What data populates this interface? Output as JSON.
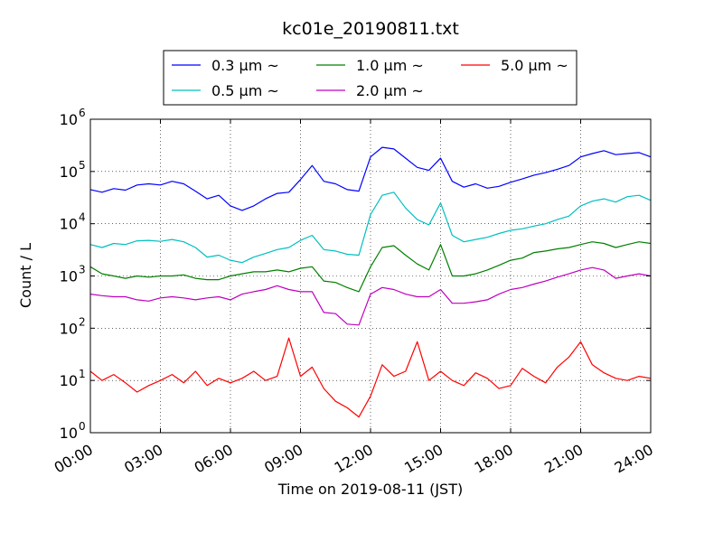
{
  "chart_data": {
    "type": "line",
    "title": "kc01e_20190811.txt",
    "xlabel": "Time on 2019-08-11 (JST)",
    "ylabel": "Count / L",
    "yscale": "log",
    "ylim": [
      1,
      1000000
    ],
    "xlim": [
      "00:00",
      "24:00"
    ],
    "grid": true,
    "legend_position": "top",
    "x_ticks": [
      "00:00",
      "03:00",
      "06:00",
      "09:00",
      "12:00",
      "15:00",
      "18:00",
      "21:00",
      "24:00"
    ],
    "y_ticks": [
      {
        "value": 1,
        "base": "10",
        "exp": "0"
      },
      {
        "value": 10,
        "base": "10",
        "exp": "1"
      },
      {
        "value": 100,
        "base": "10",
        "exp": "2"
      },
      {
        "value": 1000,
        "base": "10",
        "exp": "3"
      },
      {
        "value": 10000,
        "base": "10",
        "exp": "4"
      },
      {
        "value": 100000,
        "base": "10",
        "exp": "5"
      },
      {
        "value": 1000000,
        "base": "10",
        "exp": "6"
      }
    ],
    "x_hours": [
      0,
      0.5,
      1,
      1.5,
      2,
      2.5,
      3,
      3.5,
      4,
      4.5,
      5,
      5.5,
      6,
      6.5,
      7,
      7.5,
      8,
      8.5,
      9,
      9.5,
      10,
      10.5,
      11,
      11.5,
      12,
      12.5,
      13,
      13.5,
      14,
      14.5,
      15,
      15.5,
      16,
      16.5,
      17,
      17.5,
      18,
      18.5,
      19,
      19.5,
      20,
      20.5,
      21,
      21.5,
      22,
      22.5,
      23,
      23.5,
      24
    ],
    "series": [
      {
        "name": "0.3 μm ~",
        "color": "#0000ff",
        "values": [
          45000,
          40000,
          47000,
          44000,
          55000,
          58000,
          55000,
          65000,
          58000,
          42000,
          30000,
          35000,
          22000,
          18000,
          22000,
          30000,
          38000,
          40000,
          70000,
          130000,
          65000,
          58000,
          45000,
          42000,
          190000,
          290000,
          270000,
          180000,
          120000,
          105000,
          180000,
          65000,
          50000,
          58000,
          48000,
          52000,
          62000,
          72000,
          85000,
          95000,
          110000,
          130000,
          190000,
          220000,
          250000,
          210000,
          220000,
          230000,
          190000
        ]
      },
      {
        "name": "0.5 μm ~",
        "color": "#00bfbf",
        "values": [
          4000,
          3500,
          4200,
          4000,
          4700,
          4800,
          4600,
          5000,
          4500,
          3500,
          2300,
          2500,
          2000,
          1800,
          2300,
          2700,
          3200,
          3500,
          4800,
          6000,
          3200,
          3000,
          2600,
          2500,
          15000,
          35000,
          40000,
          20000,
          12000,
          9500,
          25000,
          6000,
          4500,
          5000,
          5500,
          6500,
          7500,
          8000,
          9000,
          10000,
          12000,
          14000,
          22000,
          27000,
          30000,
          26000,
          33000,
          35000,
          28000
        ]
      },
      {
        "name": "1.0 μm ~",
        "color": "#008000",
        "values": [
          1500,
          1100,
          1000,
          900,
          1000,
          950,
          1000,
          1000,
          1050,
          900,
          850,
          850,
          1000,
          1100,
          1200,
          1200,
          1300,
          1200,
          1400,
          1500,
          800,
          750,
          600,
          500,
          1500,
          3500,
          3800,
          2500,
          1700,
          1300,
          4000,
          1000,
          1000,
          1100,
          1300,
          1600,
          2000,
          2200,
          2800,
          3000,
          3300,
          3500,
          4000,
          4500,
          4200,
          3500,
          4000,
          4500,
          4200
        ]
      },
      {
        "name": "2.0 μm ~",
        "color": "#bf00bf",
        "values": [
          450,
          420,
          400,
          400,
          350,
          330,
          380,
          400,
          380,
          350,
          380,
          400,
          350,
          450,
          500,
          550,
          650,
          550,
          500,
          500,
          200,
          190,
          120,
          115,
          450,
          600,
          550,
          450,
          400,
          400,
          550,
          300,
          300,
          320,
          350,
          450,
          550,
          600,
          700,
          800,
          950,
          1100,
          1300,
          1450,
          1300,
          900,
          1000,
          1100,
          1000
        ]
      },
      {
        "name": "5.0 μm ~",
        "color": "#ff0000",
        "values": [
          15,
          10,
          13,
          9,
          6,
          8,
          10,
          13,
          9,
          15,
          8,
          11,
          9,
          11,
          15,
          10,
          12,
          65,
          12,
          18,
          7,
          4,
          3,
          2,
          5,
          20,
          12,
          15,
          55,
          10,
          15,
          10,
          8,
          14,
          11,
          7,
          8,
          17,
          12,
          9,
          18,
          28,
          55,
          20,
          14,
          11,
          10,
          12,
          11
        ]
      }
    ]
  }
}
